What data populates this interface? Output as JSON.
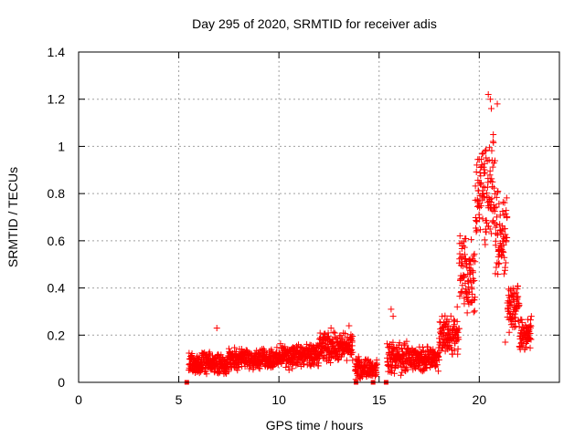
{
  "chart_data": {
    "type": "scatter",
    "title": "Day 295 of 2020, SRMTID for receiver adis",
    "xlabel": "GPS time / hours",
    "ylabel": "SRMTID / TECUs",
    "xlim": [
      0,
      24
    ],
    "ylim": [
      0,
      1.4
    ],
    "xticks": [
      0,
      5,
      10,
      15,
      20
    ],
    "yticks": [
      0,
      0.2,
      0.4,
      0.6,
      0.8,
      1,
      1.2,
      1.4
    ],
    "xtick_labels": [
      "0",
      "5",
      "10",
      "15",
      "20"
    ],
    "ytick_labels": [
      "0",
      "0.2",
      "0.4",
      "0.6",
      "0.8",
      "1",
      "1.2",
      "1.4"
    ],
    "grid": true,
    "series": [
      {
        "name": "SRMTID",
        "color": "#ff0000",
        "marker": "plus",
        "segments": [
          {
            "t0": 5.5,
            "t1": 7.5,
            "base": 0.08,
            "amp": 0.05
          },
          {
            "t0": 7.5,
            "t1": 10.0,
            "base": 0.1,
            "amp": 0.05
          },
          {
            "t0": 10.0,
            "t1": 12.0,
            "base": 0.11,
            "amp": 0.06
          },
          {
            "t0": 12.0,
            "t1": 13.7,
            "base": 0.15,
            "amp": 0.07
          },
          {
            "t0": 13.8,
            "t1": 14.9,
            "base": 0.06,
            "amp": 0.05
          },
          {
            "t0": 15.4,
            "t1": 16.5,
            "base": 0.1,
            "amp": 0.08
          },
          {
            "t0": 16.5,
            "t1": 18.0,
            "base": 0.1,
            "amp": 0.06
          },
          {
            "t0": 18.0,
            "t1": 19.0,
            "base": 0.2,
            "amp": 0.1
          },
          {
            "t0": 19.0,
            "t1": 19.8,
            "base": 0.45,
            "amp": 0.2
          },
          {
            "t0": 19.8,
            "t1": 20.8,
            "base": 0.8,
            "amp": 0.25
          },
          {
            "t0": 20.8,
            "t1": 21.4,
            "base": 0.6,
            "amp": 0.25
          },
          {
            "t0": 21.4,
            "t1": 22.0,
            "base": 0.32,
            "amp": 0.12
          },
          {
            "t0": 22.0,
            "t1": 22.6,
            "base": 0.2,
            "amp": 0.08
          }
        ],
        "extra_points": [
          [
            20.45,
            1.22
          ],
          [
            20.55,
            1.2
          ],
          [
            20.6,
            1.16
          ],
          [
            20.9,
            1.18
          ],
          [
            20.7,
            1.05
          ],
          [
            20.3,
            0.98
          ],
          [
            6.9,
            0.23
          ],
          [
            12.6,
            0.23
          ],
          [
            13.5,
            0.24
          ],
          [
            15.6,
            0.31
          ],
          [
            15.7,
            0.28
          ],
          [
            18.9,
            0.32
          ],
          [
            19.3,
            0.42
          ],
          [
            21.3,
            0.17
          ],
          [
            22.6,
            0.28
          ]
        ],
        "zero_points": [
          5.4,
          13.85,
          14.7,
          15.35
        ]
      }
    ]
  }
}
